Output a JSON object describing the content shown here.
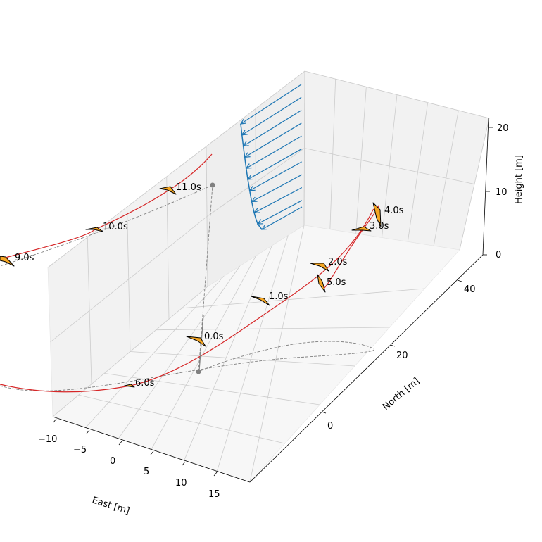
{
  "chart_data": {
    "type": "3d-trajectory",
    "axes": {
      "east": {
        "label": "East [m]",
        "ticks": [
          -10,
          -5,
          0,
          5,
          10,
          15
        ],
        "tick_labels": [
          "−10",
          "−5",
          "0",
          "5",
          "10",
          "15"
        ],
        "range": [
          -10.5,
          18
        ]
      },
      "north": {
        "label": "North [m]",
        "ticks": [
          0,
          20,
          40
        ],
        "tick_labels": [
          "0",
          "20",
          "40"
        ],
        "range": [
          -10,
          50
        ]
      },
      "height": {
        "label": "Height [m]",
        "ticks": [
          0,
          10,
          20
        ],
        "tick_labels": [
          "0",
          "10",
          "20"
        ],
        "range": [
          0,
          21
        ]
      },
      "grid": true,
      "panes": "light-gray"
    },
    "colors": {
      "trajectory": "#d62728",
      "wind_profile": "#1f77b4",
      "kite_fill": "#f5a623",
      "kite_edge": "#000000",
      "ground_track": "#808080",
      "tether": "#808080",
      "grid": "#cccccc",
      "pane_back": "#eeeeee",
      "pane_side": "#f2f2f2",
      "pane_floor": "#f7f7f7"
    },
    "timestamps": [
      {
        "label": "0.0s",
        "t": 0.0,
        "east": 4,
        "north": 5,
        "height": 3
      },
      {
        "label": "1.0s",
        "t": 1.0,
        "east": 6,
        "north": 20,
        "height": 3.5
      },
      {
        "label": "2.0s",
        "t": 2.0,
        "east": 5,
        "north": 33,
        "height": 5
      },
      {
        "label": "3.0s",
        "t": 3.0,
        "east": 3,
        "north": 42,
        "height": 7
      },
      {
        "label": "4.0s",
        "t": 4.0,
        "east": 4,
        "north": 42,
        "height": 9
      },
      {
        "label": "5.0s",
        "t": 5.0,
        "east": 8,
        "north": 30,
        "height": 4
      },
      {
        "label": "6.0s",
        "t": 6.0,
        "east": 12,
        "north": -2,
        "height": -3
      },
      {
        "label": "9.0s",
        "t": 9.0,
        "east": -3,
        "north": -10,
        "height": 18
      },
      {
        "label": "10.0s",
        "t": 10.0,
        "east": -5,
        "north": 5,
        "height": 15.5
      },
      {
        "label": "11.0s",
        "t": 11.0,
        "east": -7,
        "north": 20,
        "height": 14
      }
    ],
    "ground_station": {
      "east": 3,
      "north": 10,
      "height": 0
    },
    "wind_profile": {
      "description": "logarithmic wind speed profile",
      "heights": [
        1,
        2,
        3,
        4,
        5,
        6,
        7,
        8,
        9,
        10,
        11,
        12,
        13,
        14,
        15,
        16,
        17,
        18,
        19,
        20
      ]
    }
  }
}
